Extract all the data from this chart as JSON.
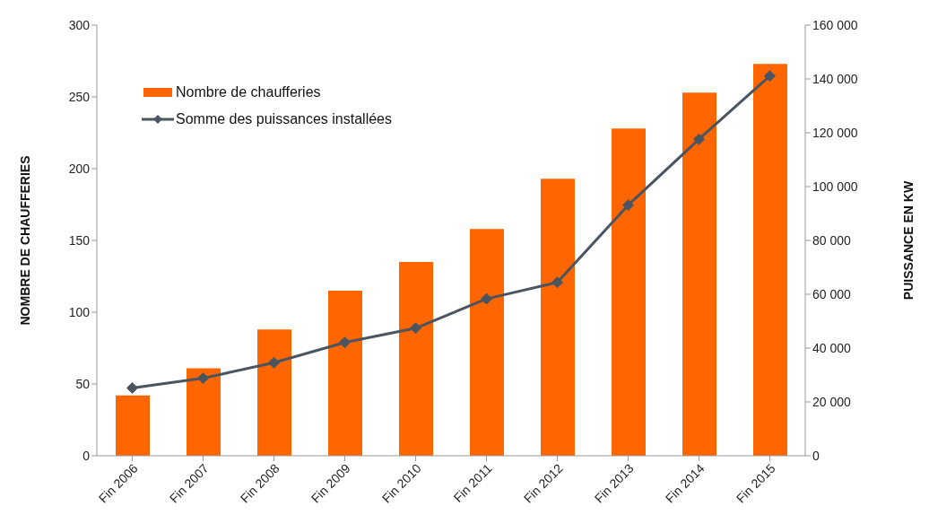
{
  "chart_data": {
    "type": "bar",
    "ylabel": "NOMBRE DE CHAUFFERIES",
    "y2label": "PUISSANCE EN KW",
    "categories": [
      "Fin 2006",
      "Fin 2007",
      "Fin 2008",
      "Fin 2009",
      "Fin 2010",
      "Fin 2011",
      "Fin 2012",
      "Fin 2013",
      "Fin 2014",
      "Fin 2015"
    ],
    "series": [
      {
        "name": "Nombre de chaufferies",
        "color": "#ff6600",
        "values": [
          42,
          61,
          88,
          115,
          135,
          158,
          193,
          228,
          253,
          273
        ]
      },
      {
        "name": "Somme des puissances installées",
        "type": "line",
        "axis": "y2",
        "color": "#4a5560",
        "marker": "diamond",
        "values": [
          25200,
          28800,
          34600,
          42100,
          47400,
          58300,
          64400,
          93100,
          117600,
          141100
        ]
      }
    ],
    "ylim": [
      0,
      300
    ],
    "yticks": [
      0,
      50,
      100,
      150,
      200,
      250,
      300
    ],
    "y2lim": [
      0,
      160000
    ],
    "y2ticks": [
      0,
      {
        "value": 20000,
        "label": "20 000"
      },
      {
        "value": 40000,
        "label": "40 000"
      },
      {
        "value": 60000,
        "label": "60 000"
      },
      {
        "value": 80000,
        "label": "80 000"
      },
      {
        "value": 100000,
        "label": "100 000"
      },
      {
        "value": 120000,
        "label": "120 000"
      },
      {
        "value": 140000,
        "label": "140 000"
      },
      {
        "value": 160000,
        "label": "160 000"
      }
    ],
    "legend": "top left",
    "grid": false
  }
}
